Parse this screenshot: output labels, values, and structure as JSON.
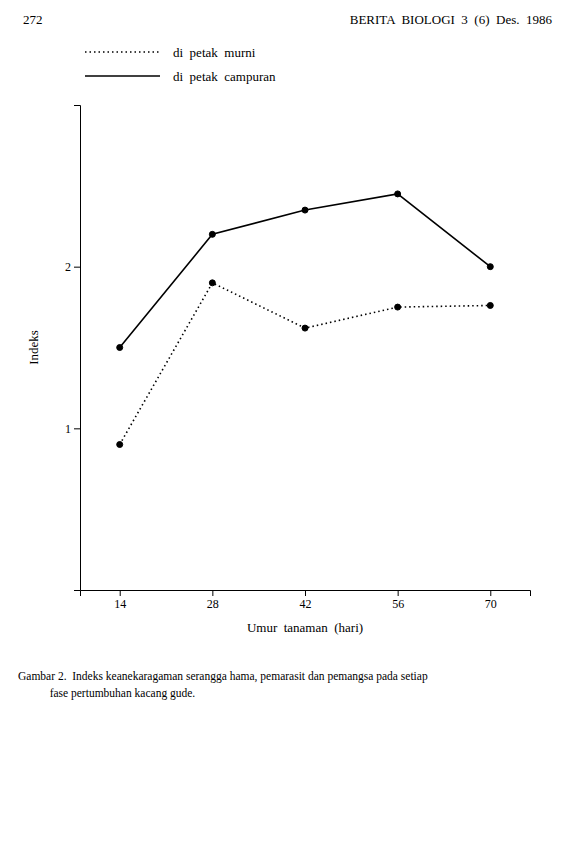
{
  "chart_data": {
    "type": "line",
    "annotations": [
      "272",
      "BERITA  BIOLOGI  3  (6)  Des.  1986",
      "Gambar 2.  Indeks keanekaragaman serangga hama, pemarasit dan pemangsa pada setiap\n           fase pertumbuhan kacang gude."
    ],
    "x_label": "Umur  tanaman  (hari)",
    "y_label": "Indeks",
    "x": [
      14,
      28,
      42,
      56,
      70
    ],
    "series": [
      {
        "name": "di  petak  campuran",
        "color": "#000000",
        "line_style": "solid",
        "marker": "circle",
        "values": [
          1.5,
          2.2,
          2.35,
          2.45,
          2.0
        ]
      },
      {
        "name": "di  petak  murni",
        "color": "#000000",
        "line_style": "dotted",
        "marker": "circle",
        "values": [
          0.9,
          1.9,
          1.62,
          1.75,
          1.76
        ]
      }
    ],
    "xlim": [
      8,
      76
    ],
    "ylim": [
      0,
      3.0
    ],
    "xticks": [
      14,
      28,
      42,
      56,
      70
    ],
    "yticks": [
      1,
      2
    ],
    "grid": false
  }
}
